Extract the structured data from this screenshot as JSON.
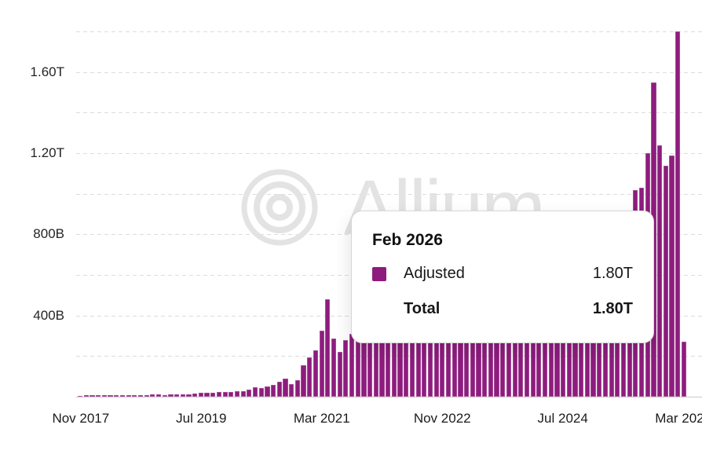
{
  "chart_data": {
    "type": "bar",
    "title": "",
    "series": [
      {
        "name": "Adjusted",
        "unit": "USD",
        "color": "#8E1C7E"
      }
    ],
    "categories": [
      "Nov 2017",
      "Dec 2017",
      "Jan 2018",
      "Feb 2018",
      "Mar 2018",
      "Apr 2018",
      "May 2018",
      "Jun 2018",
      "Jul 2018",
      "Aug 2018",
      "Sep 2018",
      "Oct 2018",
      "Nov 2018",
      "Dec 2018",
      "Jan 2019",
      "Feb 2019",
      "Mar 2019",
      "Apr 2019",
      "May 2019",
      "Jun 2019",
      "Jul 2019",
      "Aug 2019",
      "Sep 2019",
      "Oct 2019",
      "Nov 2019",
      "Dec 2019",
      "Jan 2020",
      "Feb 2020",
      "Mar 2020",
      "Apr 2020",
      "May 2020",
      "Jun 2020",
      "Jul 2020",
      "Aug 2020",
      "Sep 2020",
      "Oct 2020",
      "Nov 2020",
      "Dec 2020",
      "Jan 2021",
      "Feb 2021",
      "Mar 2021",
      "Apr 2021",
      "May 2021",
      "Jun 2021",
      "Jul 2021",
      "Aug 2021",
      "Sep 2021",
      "Oct 2021",
      "Nov 2021",
      "Dec 2021",
      "Jan 2022",
      "Feb 2022",
      "Mar 2022",
      "Apr 2022",
      "May 2022",
      "Jun 2022",
      "Jul 2022",
      "Aug 2022",
      "Sep 2022",
      "Oct 2022",
      "Nov 2022",
      "Dec 2022",
      "Jan 2023",
      "Feb 2023",
      "Mar 2023",
      "Apr 2023",
      "May 2023",
      "Jun 2023",
      "Jul 2023",
      "Aug 2023",
      "Sep 2023",
      "Oct 2023",
      "Nov 2023",
      "Dec 2023",
      "Jan 2024",
      "Feb 2024",
      "Mar 2024",
      "Apr 2024",
      "May 2024",
      "Jun 2024",
      "Jul 2024",
      "Aug 2024",
      "Sep 2024",
      "Oct 2024",
      "Nov 2024",
      "Dec 2024",
      "Jan 2025",
      "Feb 2025",
      "Mar 2025",
      "Apr 2025",
      "May 2025",
      "Jun 2025",
      "Jul 2025",
      "Aug 2025",
      "Sep 2025",
      "Oct 2025",
      "Nov 2025",
      "Dec 2025",
      "Jan 2026",
      "Feb 2026",
      "Mar 2026"
    ],
    "values_billions": [
      4,
      8,
      8,
      6,
      6,
      6,
      7,
      7,
      7,
      8,
      8,
      9,
      10,
      10,
      9,
      10,
      11,
      12,
      13,
      16,
      18,
      18,
      21,
      23,
      23,
      23,
      26,
      28,
      35,
      45,
      43,
      52,
      58,
      74,
      88,
      62,
      80,
      153,
      194,
      227,
      324,
      479,
      285,
      222,
      280,
      310,
      330,
      360,
      400,
      420,
      430,
      400,
      430,
      450,
      520,
      460,
      410,
      400,
      420,
      430,
      480,
      410,
      400,
      420,
      480,
      430,
      420,
      400,
      390,
      380,
      390,
      430,
      480,
      510,
      500,
      540,
      620,
      580,
      560,
      540,
      560,
      540,
      520,
      580,
      680,
      760,
      720,
      650,
      680,
      700,
      760,
      900,
      1020,
      1030,
      1200,
      1550,
      1240,
      1140,
      1190,
      1800,
      270
    ],
    "highlighted_category": "Feb 2026",
    "xlabel": "",
    "ylabel": "",
    "x_tick_labels": [
      "Nov 2017",
      "Jul 2019",
      "Mar 2021",
      "Nov 2022",
      "Jul 2024",
      "Mar 2026"
    ],
    "x_tick_indices": [
      0,
      20,
      40,
      60,
      80,
      100
    ],
    "y_ticks": [
      {
        "value": 400,
        "label": "400B"
      },
      {
        "value": 800,
        "label": "800B"
      },
      {
        "value": 1200,
        "label": "1.20T"
      },
      {
        "value": 1600,
        "label": "1.60T"
      }
    ],
    "ylim_billions": [
      0,
      1860
    ],
    "gridline_step_billions": 200,
    "grid": "dashed-horizontal",
    "legend_position": "none"
  },
  "tooltip": {
    "title": "Feb 2026",
    "rows": [
      {
        "swatch": "#8E1C7E",
        "label": "Adjusted",
        "value": "1.80T"
      },
      {
        "label": "Total",
        "value": "1.80T"
      }
    ]
  },
  "watermark": {
    "text": "Allium"
  },
  "colors": {
    "bar": "#8E1C7E",
    "gridline": "#dcdcdc",
    "axis_line": "#c9c9c9",
    "axis_text": "#1b1b1f",
    "watermark": "#e3e3e3",
    "background": "#ffffff"
  }
}
